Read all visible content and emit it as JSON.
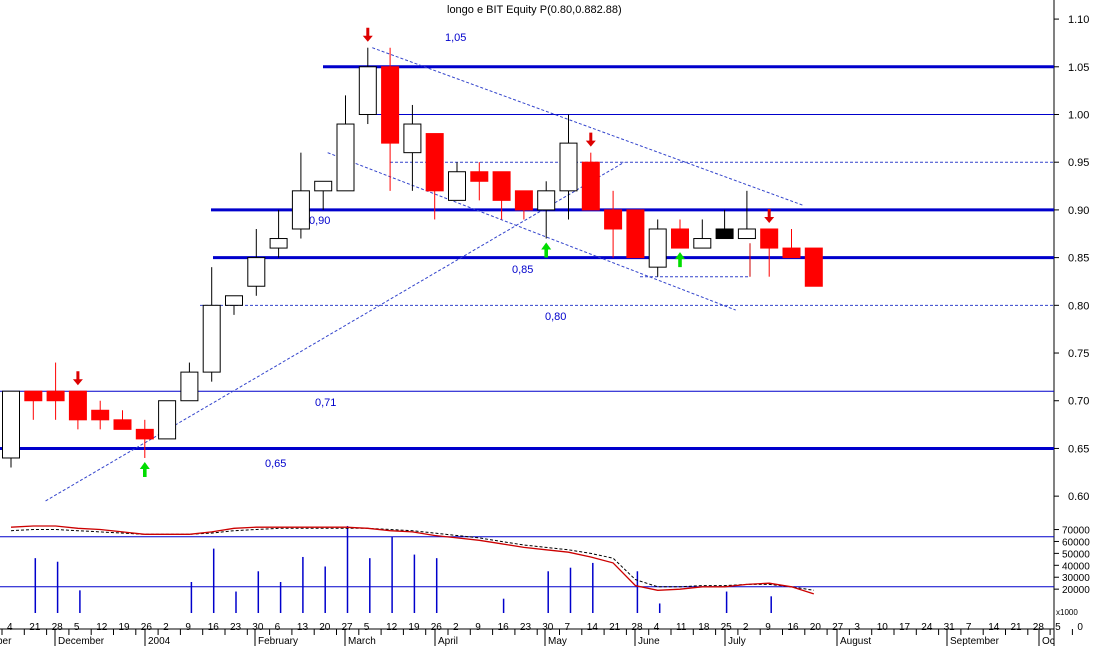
{
  "chart_data": {
    "type": "candlestick",
    "title": "longo e BIT Equity",
    "title_overlay": "P(0.80,0.882.88)",
    "price_axis": {
      "ylim": [
        0.575,
        1.12
      ],
      "ticks": [
        "1.10",
        "1.05",
        "1.00",
        "0.95",
        "0.90",
        "0.85",
        "0.80",
        "0.75",
        "0.70",
        "0.65",
        "0.60"
      ]
    },
    "volume_axis": {
      "ylim": [
        0,
        78000
      ],
      "ticks": [
        "70000",
        "60000",
        "50000",
        "40000",
        "30000",
        "20000"
      ],
      "unit": "x1000"
    },
    "x_ticks": [
      "4",
      "21",
      "28",
      "5",
      "12",
      "19",
      "26",
      "2",
      "9",
      "16",
      "23",
      "30",
      "6",
      "13",
      "20",
      "27",
      "5",
      "12",
      "19",
      "26",
      "2",
      "9",
      "16",
      "23",
      "30",
      "7",
      "14",
      "21",
      "28",
      "4",
      "11",
      "18",
      "25",
      "2",
      "9",
      "16",
      "20",
      "27",
      "3",
      "10",
      "17",
      "24",
      "31",
      "7",
      "14",
      "21",
      "28",
      "5",
      "0"
    ],
    "month_labels": [
      "ber",
      "December",
      "2004",
      "February",
      "March",
      "April",
      "May",
      "June",
      "July",
      "August",
      "September",
      "Oc"
    ],
    "candles": [
      {
        "o": 0.64,
        "h": 0.71,
        "l": 0.63,
        "c": 0.71
      },
      {
        "o": 0.71,
        "h": 0.71,
        "l": 0.68,
        "c": 0.7
      },
      {
        "o": 0.71,
        "h": 0.74,
        "l": 0.68,
        "c": 0.7
      },
      {
        "o": 0.71,
        "h": 0.71,
        "l": 0.67,
        "c": 0.68
      },
      {
        "o": 0.69,
        "h": 0.7,
        "l": 0.67,
        "c": 0.68
      },
      {
        "o": 0.68,
        "h": 0.69,
        "l": 0.67,
        "c": 0.67
      },
      {
        "o": 0.67,
        "h": 0.68,
        "l": 0.64,
        "c": 0.66
      },
      {
        "o": 0.66,
        "h": 0.7,
        "l": 0.66,
        "c": 0.7
      },
      {
        "o": 0.7,
        "h": 0.74,
        "l": 0.7,
        "c": 0.73
      },
      {
        "o": 0.73,
        "h": 0.84,
        "l": 0.72,
        "c": 0.8
      },
      {
        "o": 0.8,
        "h": 0.81,
        "l": 0.79,
        "c": 0.81
      },
      {
        "o": 0.82,
        "h": 0.88,
        "l": 0.81,
        "c": 0.85
      },
      {
        "o": 0.86,
        "h": 0.9,
        "l": 0.85,
        "c": 0.87
      },
      {
        "o": 0.88,
        "h": 0.96,
        "l": 0.87,
        "c": 0.92
      },
      {
        "o": 0.92,
        "h": 0.93,
        "l": 0.9,
        "c": 0.93
      },
      {
        "o": 0.92,
        "h": 1.02,
        "l": 0.92,
        "c": 0.99
      },
      {
        "o": 1.0,
        "h": 1.07,
        "l": 0.99,
        "c": 1.05
      },
      {
        "o": 1.05,
        "h": 1.07,
        "l": 0.92,
        "c": 0.97
      },
      {
        "o": 0.96,
        "h": 1.01,
        "l": 0.92,
        "c": 0.99
      },
      {
        "o": 0.98,
        "h": 0.98,
        "l": 0.89,
        "c": 0.92
      },
      {
        "o": 0.91,
        "h": 0.95,
        "l": 0.91,
        "c": 0.94
      },
      {
        "o": 0.94,
        "h": 0.95,
        "l": 0.91,
        "c": 0.93
      },
      {
        "o": 0.94,
        "h": 0.94,
        "l": 0.89,
        "c": 0.91
      },
      {
        "o": 0.92,
        "h": 0.92,
        "l": 0.89,
        "c": 0.9
      },
      {
        "o": 0.9,
        "h": 0.93,
        "l": 0.87,
        "c": 0.92
      },
      {
        "o": 0.92,
        "h": 1.0,
        "l": 0.89,
        "c": 0.97
      },
      {
        "o": 0.95,
        "h": 0.96,
        "l": 0.9,
        "c": 0.9
      },
      {
        "o": 0.9,
        "h": 0.92,
        "l": 0.85,
        "c": 0.88
      },
      {
        "o": 0.9,
        "h": 0.9,
        "l": 0.85,
        "c": 0.85
      },
      {
        "o": 0.84,
        "h": 0.89,
        "l": 0.83,
        "c": 0.88
      },
      {
        "o": 0.88,
        "h": 0.89,
        "l": 0.86,
        "c": 0.86
      },
      {
        "o": 0.86,
        "h": 0.89,
        "l": 0.86,
        "c": 0.87
      },
      {
        "o": 0.87,
        "h": 0.9,
        "l": 0.87,
        "c": 0.88
      },
      {
        "o": 0.87,
        "h": 0.92,
        "l": 0.87,
        "c": 0.88
      },
      {
        "o": 0.88,
        "h": 0.88,
        "l": 0.83,
        "c": 0.86
      },
      {
        "o": 0.86,
        "h": 0.88,
        "l": 0.85,
        "c": 0.85
      },
      {
        "o": 0.86,
        "h": 0.86,
        "l": 0.82,
        "c": 0.82
      }
    ],
    "volumes": [
      0,
      46000,
      43000,
      19000,
      0,
      0,
      0,
      0,
      26000,
      54000,
      18000,
      35000,
      26000,
      47000,
      39000,
      73000,
      46000,
      64000,
      49000,
      46000,
      0,
      0,
      12000,
      0,
      35000,
      38000,
      42000,
      0,
      35000,
      8000,
      0,
      0,
      18000,
      0,
      14000,
      0,
      0
    ],
    "moving_average_1": [
      72000,
      73000,
      73000,
      71000,
      70000,
      68000,
      66000,
      66000,
      66000,
      68000,
      71000,
      72000,
      72000,
      72000,
      72000,
      72000,
      71000,
      69000,
      68000,
      65000,
      63000,
      61000,
      58000,
      55000,
      53000,
      51000,
      47000,
      42000,
      23000,
      19000,
      20000,
      22000,
      22000,
      24000,
      25000,
      22000,
      16000
    ],
    "moving_average_2": [
      69000,
      70000,
      70000,
      69000,
      68000,
      67000,
      66000,
      66000,
      66000,
      67000,
      69000,
      70000,
      71000,
      71000,
      71000,
      71000,
      71000,
      70000,
      69000,
      67000,
      65000,
      63000,
      60000,
      57000,
      55000,
      53000,
      50000,
      46000,
      28000,
      22000,
      22000,
      23000,
      23000,
      24000,
      24000,
      22000,
      19000
    ],
    "volume_hline": 22000,
    "volume_top_hline": 64000,
    "horizontal_levels": [
      {
        "label": "1,05",
        "value": 1.05,
        "thick": true
      },
      {
        "label": "",
        "value": 1.0,
        "thick": false
      },
      {
        "label": "0,90",
        "value": 0.9,
        "thick": true
      },
      {
        "label": "0,85",
        "value": 0.85,
        "thick": true
      },
      {
        "label": "0,71",
        "value": 0.71,
        "thick": false
      },
      {
        "label": "0,65",
        "value": 0.65,
        "thick": true
      }
    ],
    "dashed_levels": [
      {
        "label": "",
        "value": 0.95
      },
      {
        "label": "0,80",
        "value": 0.8
      },
      {
        "label": "",
        "value": 0.83
      }
    ],
    "trendlines": [
      {
        "from": [
          1.55,
          0.595
        ],
        "to": [
          27.5,
          0.95
        ]
      },
      {
        "from": [
          16.2,
          1.07
        ],
        "to": [
          35.5,
          0.905
        ]
      },
      {
        "from": [
          14.2,
          0.96
        ],
        "to": [
          32.5,
          0.795
        ]
      }
    ],
    "signals": [
      {
        "type": "sell",
        "index": 3
      },
      {
        "type": "buy",
        "index": 6
      },
      {
        "type": "sell",
        "index": 16
      },
      {
        "type": "buy",
        "index": 24
      },
      {
        "type": "sell",
        "index": 26
      },
      {
        "type": "buy",
        "index": 30
      },
      {
        "type": "sell",
        "index": 34
      }
    ],
    "colors": {
      "up": "#ffffff",
      "down": "#ff0000",
      "level": "#0000cc",
      "dashed": "#3344cc",
      "ma1": "#cc0000",
      "ma2": "#000000",
      "buy": "#00dd00",
      "sell": "#dd0000",
      "volume": "#0000cc",
      "special": "#000000"
    }
  }
}
